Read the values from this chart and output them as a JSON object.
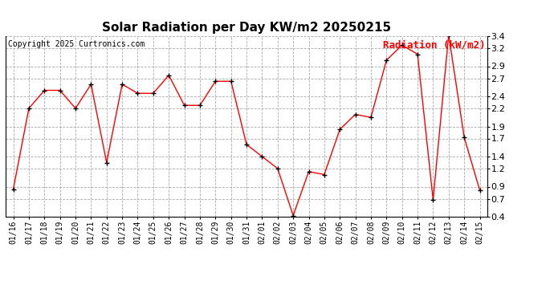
{
  "title": "Solar Radiation per Day KW/m2 20250215",
  "copyright": "Copyright 2025 Curtronics.com",
  "legend_label": "Radiation (kW/m2)",
  "dates": [
    "01/16",
    "01/17",
    "01/18",
    "01/19",
    "01/20",
    "01/21",
    "01/22",
    "01/23",
    "01/24",
    "01/25",
    "01/26",
    "01/27",
    "01/28",
    "01/29",
    "01/30",
    "01/31",
    "02/01",
    "02/02",
    "02/03",
    "02/04",
    "02/05",
    "02/06",
    "02/07",
    "02/08",
    "02/09",
    "02/10",
    "02/11",
    "02/12",
    "02/13",
    "02/14",
    "02/15"
  ],
  "values": [
    0.86,
    2.2,
    2.5,
    2.5,
    2.2,
    2.6,
    1.3,
    2.6,
    2.45,
    2.45,
    2.75,
    2.25,
    2.25,
    2.65,
    2.65,
    1.6,
    1.4,
    1.2,
    0.42,
    1.15,
    1.1,
    1.85,
    2.1,
    2.05,
    3.0,
    3.25,
    3.1,
    0.68,
    3.42,
    1.72,
    0.84
  ],
  "line_color": "red",
  "marker_color": "black",
  "marker": "+",
  "ylim": [
    0.4,
    3.4
  ],
  "yticks": [
    0.4,
    0.7,
    0.9,
    1.2,
    1.4,
    1.7,
    1.9,
    2.2,
    2.4,
    2.7,
    2.9,
    3.2,
    3.4
  ],
  "grid_color": "#aaaaaa",
  "background_color": "white",
  "title_fontsize": 11,
  "copyright_fontsize": 7,
  "legend_fontsize": 9,
  "axis_fontsize": 7
}
